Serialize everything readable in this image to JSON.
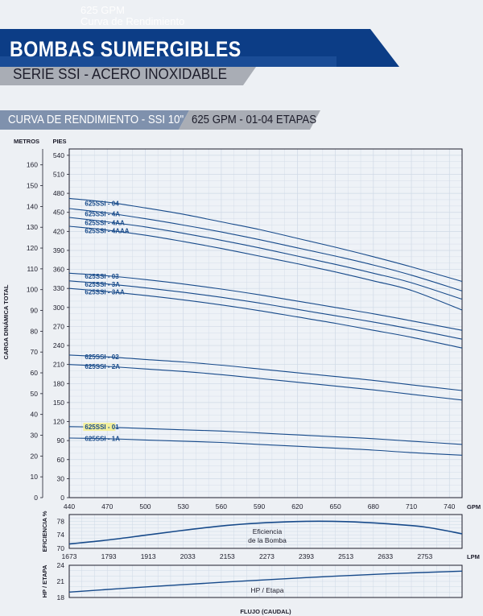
{
  "ghost": {
    "line1": "625 GPM",
    "line2": "Curva de Rendimiento"
  },
  "header": {
    "title": "BOMBAS SUMERGIBLES",
    "subtitle": "SERIE SSI - ACERO INOXIDABLE",
    "section_left": "CURVA DE RENDIMIENTO - SSI 10\"",
    "section_right": "625 GPM - 01-04 ETAPAS"
  },
  "colors": {
    "navy": "#0c3d86",
    "grey": "#a9adb5",
    "curve": "#174a8a",
    "highlight": "#f3ef9c",
    "grid": "#cfd9e6"
  },
  "chart_data": [
    {
      "type": "line",
      "ylabel": "CARGA DINÁMICA TOTAL",
      "y_units_left": "METROS",
      "y_units_right": "PIES",
      "x_units": "GPM",
      "x_ticks": [
        440,
        470,
        500,
        530,
        560,
        590,
        620,
        650,
        680,
        710,
        740
      ],
      "xlim": [
        440,
        750
      ],
      "y_feet_ticks": [
        0,
        30,
        60,
        90,
        120,
        150,
        180,
        210,
        240,
        270,
        300,
        330,
        360,
        390,
        420,
        450,
        480,
        510,
        540
      ],
      "y_meter_ticks": [
        0,
        10,
        20,
        30,
        40,
        50,
        60,
        70,
        80,
        90,
        100,
        110,
        120,
        130,
        140,
        150,
        160
      ],
      "ylim_feet": [
        0,
        550
      ],
      "grid": true,
      "series": [
        {
          "name": "625SSI - 04",
          "x": [
            440,
            470,
            500,
            530,
            560,
            590,
            620,
            650,
            680,
            710,
            750
          ],
          "y": [
            472,
            466,
            457,
            447,
            435,
            423,
            409,
            395,
            380,
            364,
            341
          ]
        },
        {
          "name": "625SSI - 4A",
          "x": [
            440,
            470,
            500,
            530,
            560,
            590,
            620,
            650,
            680,
            710,
            750
          ],
          "y": [
            456,
            449,
            440,
            430,
            419,
            407,
            394,
            381,
            367,
            351,
            326
          ]
        },
        {
          "name": "625SSI - 4AA",
          "x": [
            440,
            470,
            500,
            530,
            560,
            590,
            620,
            650,
            680,
            710,
            750
          ],
          "y": [
            442,
            435,
            427,
            417,
            406,
            394,
            381,
            368,
            354,
            339,
            313
          ]
        },
        {
          "name": "625SSI - 4AAA",
          "x": [
            440,
            470,
            500,
            530,
            560,
            590,
            620,
            650,
            680,
            710,
            750
          ],
          "y": [
            428,
            422,
            414,
            404,
            393,
            381,
            369,
            356,
            342,
            327,
            296
          ]
        },
        {
          "name": "625SSI - 03",
          "x": [
            440,
            470,
            500,
            530,
            560,
            590,
            620,
            650,
            680,
            710,
            750
          ],
          "y": [
            354,
            350,
            344,
            337,
            329,
            320,
            310,
            300,
            290,
            279,
            264
          ]
        },
        {
          "name": "625SSI - 3A",
          "x": [
            440,
            470,
            500,
            530,
            560,
            590,
            620,
            650,
            680,
            710,
            750
          ],
          "y": [
            342,
            337,
            331,
            324,
            316,
            307,
            297,
            287,
            277,
            266,
            250
          ]
        },
        {
          "name": "625SSI - 3AA",
          "x": [
            440,
            470,
            500,
            530,
            560,
            590,
            620,
            650,
            680,
            710,
            750
          ],
          "y": [
            330,
            325,
            319,
            312,
            304,
            295,
            285,
            275,
            264,
            253,
            236
          ]
        },
        {
          "name": "625SSI - 02",
          "x": [
            440,
            470,
            500,
            530,
            560,
            590,
            620,
            650,
            680,
            710,
            750
          ],
          "y": [
            225,
            222,
            218,
            214,
            209,
            203,
            197,
            191,
            185,
            178,
            169
          ]
        },
        {
          "name": "625SSI - 2A",
          "x": [
            440,
            470,
            500,
            530,
            560,
            590,
            620,
            650,
            680,
            710,
            750
          ],
          "y": [
            210,
            207,
            203,
            199,
            194,
            188,
            182,
            176,
            170,
            163,
            154
          ]
        },
        {
          "name": "625SSI - 01",
          "x": [
            440,
            470,
            500,
            530,
            560,
            590,
            620,
            650,
            680,
            710,
            750
          ],
          "y": [
            112,
            111,
            109,
            107,
            105,
            102,
            99,
            96,
            93,
            89,
            84
          ]
        },
        {
          "name": "625SSI - 1A",
          "x": [
            440,
            470,
            500,
            530,
            560,
            590,
            620,
            650,
            680,
            710,
            750
          ],
          "y": [
            94,
            93,
            91,
            89,
            87,
            84,
            81,
            78,
            75,
            71,
            67
          ]
        }
      ],
      "highlight_series": "625SSI - 01"
    },
    {
      "type": "line",
      "ylabel": "EFICIENCIA %",
      "y_ticks": [
        70,
        74,
        78
      ],
      "ylim": [
        70,
        80
      ],
      "x_units": "LPM",
      "x_ticks": [
        1673,
        1793,
        1913,
        2033,
        2153,
        2273,
        2393,
        2513,
        2633,
        2753
      ],
      "xlim": [
        1673,
        2866
      ],
      "grid": true,
      "annotation": [
        "Eficiencia",
        "de la Bomba"
      ],
      "series": [
        {
          "x": [
            1673,
            1793,
            1913,
            2033,
            2153,
            2273,
            2393,
            2513,
            2633,
            2753,
            2866
          ],
          "y": [
            71.3,
            72.5,
            74.0,
            75.5,
            76.8,
            77.6,
            78.0,
            77.9,
            77.3,
            76.3,
            74.3
          ]
        }
      ]
    },
    {
      "type": "line",
      "ylabel": "HP / ETAPA",
      "y_ticks": [
        18,
        21,
        24
      ],
      "ylim": [
        18,
        24
      ],
      "xlabel": "FLUJO (CAUDAL)",
      "xlim": [
        1673,
        2866
      ],
      "grid": true,
      "annotation": "HP / Etapa",
      "series": [
        {
          "x": [
            1673,
            1913,
            2153,
            2393,
            2633,
            2866
          ],
          "y": [
            19.0,
            20.0,
            20.9,
            21.7,
            22.4,
            22.9
          ]
        }
      ]
    }
  ]
}
